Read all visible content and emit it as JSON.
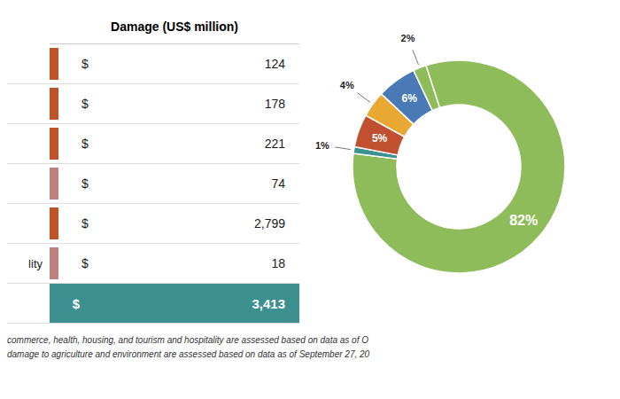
{
  "chart_data": [
    {
      "type": "table",
      "title": "Damage (US$ million)",
      "categories": [
        null,
        null,
        null,
        null,
        null,
        "lity",
        null
      ],
      "values": [
        124,
        178,
        221,
        74,
        2799,
        18,
        3413
      ],
      "value_labels": [
        "$ 124",
        "$ 178",
        "$ 221",
        "$ 74",
        "$ 2,799",
        "$ 18",
        "$ 3,413"
      ],
      "colors": [
        "#c0522a",
        "#c0522a",
        "#c0522a",
        "#c08080",
        "#c0522a",
        "#c08080",
        "#3d9090"
      ],
      "annotations": [
        "commerce, health, housing, and tourism and hospitality are assessed based on data as of O",
        "damage to agriculture and environment are assessed based on data as of September 27, 20"
      ]
    },
    {
      "type": "pie",
      "values": [
        82,
        1,
        5,
        4,
        6,
        2
      ],
      "value_labels": [
        "82%",
        "1%",
        "5%",
        "4%",
        "6%",
        "2%"
      ],
      "colors": [
        "#8fbc5a",
        "#3d9090",
        "#c05030",
        "#e8a832",
        "#4a7ab5",
        "#8fbc5a"
      ],
      "data_labels": true
    }
  ]
}
